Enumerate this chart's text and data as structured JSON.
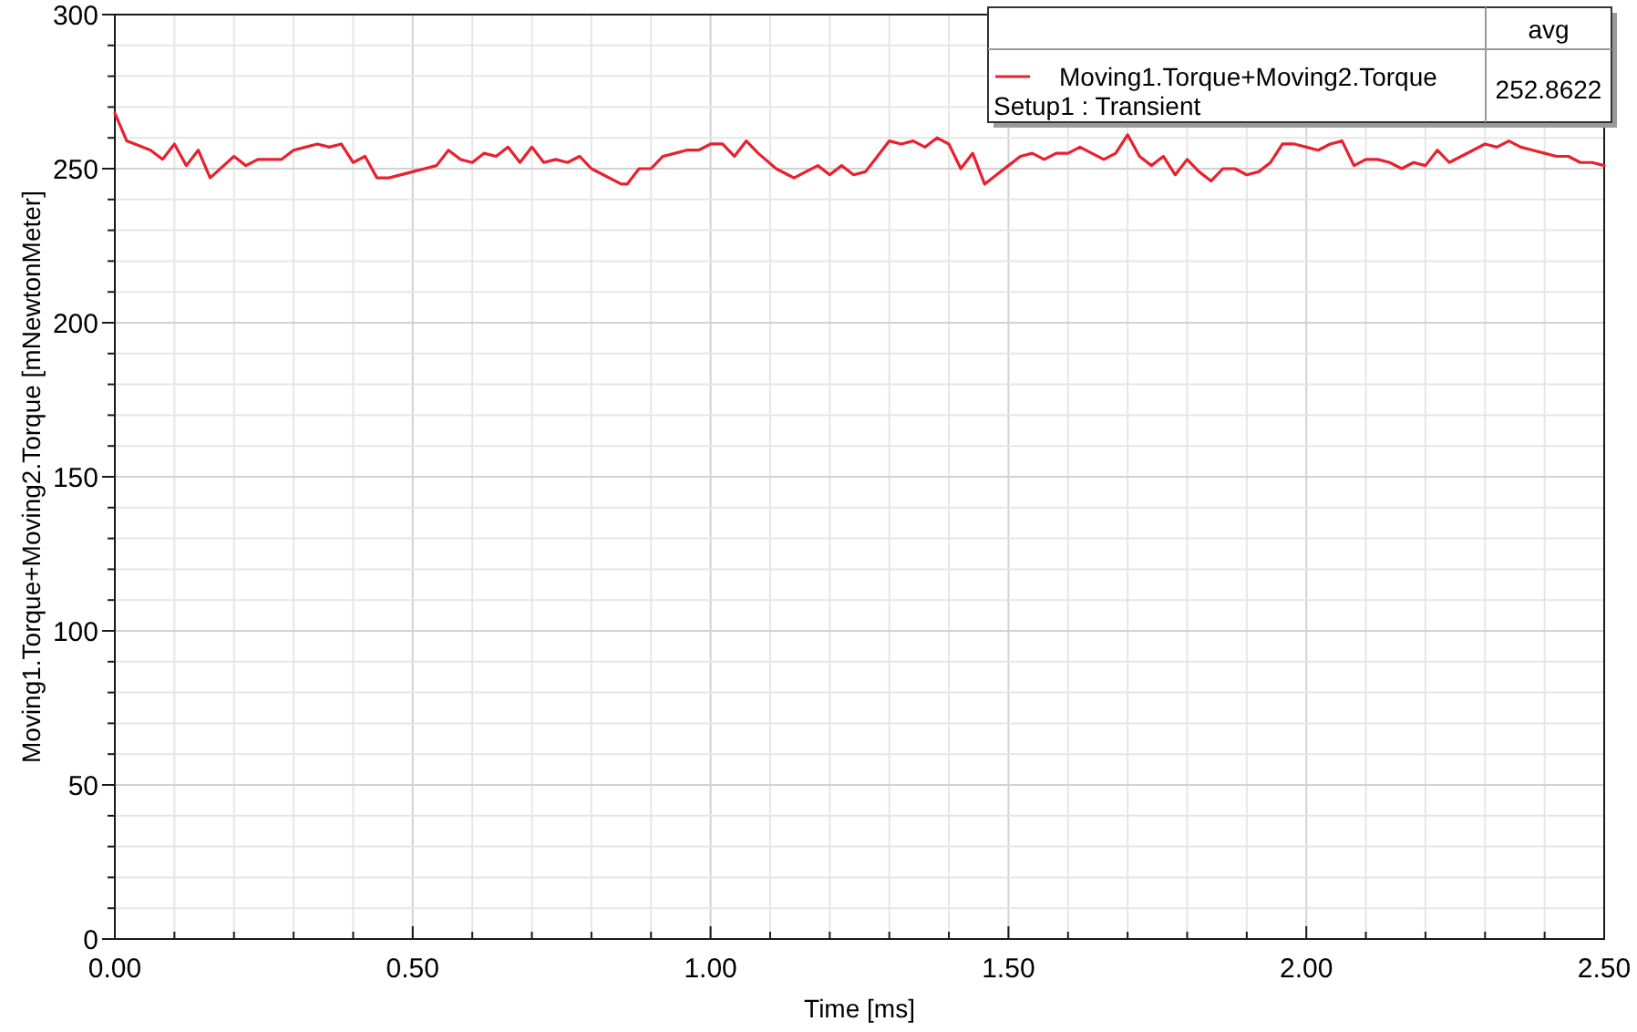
{
  "chart_data": {
    "type": "line",
    "xlabel": "Time [ms]",
    "ylabel": "Moving1.Torque+Moving2.Torque [mNewtonMeter]",
    "x": [
      0,
      0.02,
      0.06,
      0.08,
      0.1,
      0.12,
      0.14,
      0.16,
      0.2,
      0.22,
      0.24,
      0.28,
      0.3,
      0.32,
      0.34,
      0.36,
      0.38,
      0.4,
      0.42,
      0.44,
      0.46,
      0.5,
      0.52,
      0.54,
      0.56,
      0.58,
      0.6,
      0.62,
      0.64,
      0.66,
      0.68,
      0.7,
      0.72,
      0.74,
      0.76,
      0.78,
      0.8,
      0.82,
      0.85,
      0.86,
      0.88,
      0.9,
      0.92,
      0.94,
      0.96,
      0.98,
      1.0,
      1.02,
      1.04,
      1.06,
      1.08,
      1.11,
      1.13,
      1.14,
      1.16,
      1.18,
      1.2,
      1.22,
      1.24,
      1.26,
      1.28,
      1.3,
      1.32,
      1.34,
      1.36,
      1.38,
      1.4,
      1.42,
      1.44,
      1.46,
      1.48,
      1.5,
      1.52,
      1.54,
      1.56,
      1.58,
      1.6,
      1.62,
      1.64,
      1.66,
      1.68,
      1.7,
      1.72,
      1.74,
      1.76,
      1.78,
      1.8,
      1.82,
      1.84,
      1.86,
      1.88,
      1.9,
      1.92,
      1.94,
      1.96,
      1.98,
      2.0,
      2.02,
      2.04,
      2.06,
      2.08,
      2.1,
      2.12,
      2.14,
      2.16,
      2.18,
      2.2,
      2.22,
      2.24,
      2.26,
      2.28,
      2.3,
      2.32,
      2.34,
      2.36,
      2.38,
      2.4,
      2.42,
      2.44,
      2.46,
      2.48,
      2.5
    ],
    "series": [
      {
        "name": "Moving1.Torque+Moving2.Torque",
        "color": "#e8212e",
        "values": [
          268,
          259,
          256,
          253,
          258,
          251,
          256,
          247,
          254,
          251,
          253,
          253,
          256,
          257,
          258,
          257,
          258,
          252,
          254,
          247,
          247,
          249,
          250,
          251,
          256,
          253,
          252,
          255,
          254,
          257,
          252,
          257,
          252,
          253,
          252,
          254,
          250,
          248,
          245,
          245,
          250,
          250,
          254,
          255,
          256,
          256,
          258,
          258,
          254,
          259,
          255,
          250,
          248,
          247,
          249,
          251,
          248,
          251,
          248,
          249,
          254,
          259,
          258,
          259,
          257,
          260,
          258,
          250,
          255,
          245,
          248,
          251,
          254,
          255,
          253,
          255,
          255,
          257,
          255,
          253,
          255,
          261,
          254,
          251,
          254,
          248,
          253,
          249,
          246,
          250,
          250,
          248,
          249,
          252,
          258,
          258,
          257,
          256,
          258,
          259,
          251,
          253,
          253,
          252,
          250,
          252,
          251,
          256,
          252,
          254,
          256,
          258,
          257,
          259,
          257,
          256,
          255,
          254,
          254,
          252,
          252,
          251
        ]
      }
    ],
    "xlim": [
      0,
      2.5
    ],
    "ylim": [
      0,
      300
    ],
    "xticks": [
      {
        "value": 0,
        "label": "0.00"
      },
      {
        "value": 0.1,
        "label": null
      },
      {
        "value": 0.2,
        "label": null
      },
      {
        "value": 0.3,
        "label": null
      },
      {
        "value": 0.4,
        "label": null
      },
      {
        "value": 0.5,
        "label": "0.50"
      },
      {
        "value": 0.6,
        "label": null
      },
      {
        "value": 0.7,
        "label": null
      },
      {
        "value": 0.8,
        "label": null
      },
      {
        "value": 0.9,
        "label": null
      },
      {
        "value": 1,
        "label": "1.00"
      },
      {
        "value": 1.1,
        "label": null
      },
      {
        "value": 1.2,
        "label": null
      },
      {
        "value": 1.3,
        "label": null
      },
      {
        "value": 1.4,
        "label": null
      },
      {
        "value": 1.5,
        "label": "1.50"
      },
      {
        "value": 1.6,
        "label": null
      },
      {
        "value": 1.7,
        "label": null
      },
      {
        "value": 1.8,
        "label": null
      },
      {
        "value": 1.9,
        "label": null
      },
      {
        "value": 2,
        "label": "2.00"
      },
      {
        "value": 2.1,
        "label": null
      },
      {
        "value": 2.2,
        "label": null
      },
      {
        "value": 2.3,
        "label": null
      },
      {
        "value": 2.4,
        "label": null
      },
      {
        "value": 2.5,
        "label": "2.50"
      }
    ],
    "yticks": [
      0,
      {
        "value": 10,
        "label": null
      },
      {
        "value": 20,
        "label": null
      },
      {
        "value": 30,
        "label": null
      },
      {
        "value": 40,
        "label": null
      },
      50,
      {
        "value": 60,
        "label": null
      },
      {
        "value": 70,
        "label": null
      },
      {
        "value": 80,
        "label": null
      },
      {
        "value": 90,
        "label": null
      },
      100,
      {
        "value": 110,
        "label": null
      },
      {
        "value": 120,
        "label": null
      },
      {
        "value": 130,
        "label": null
      },
      {
        "value": 140,
        "label": null
      },
      150,
      {
        "value": 160,
        "label": null
      },
      {
        "value": 170,
        "label": null
      },
      {
        "value": 180,
        "label": null
      },
      {
        "value": 190,
        "label": null
      },
      200,
      {
        "value": 210,
        "label": null
      },
      {
        "value": 220,
        "label": null
      },
      {
        "value": 230,
        "label": null
      },
      {
        "value": 240,
        "label": null
      },
      250,
      {
        "value": 260,
        "label": null
      },
      {
        "value": 270,
        "label": null
      },
      {
        "value": 280,
        "label": null
      },
      {
        "value": 290,
        "label": null
      },
      300
    ],
    "grid": true,
    "legend": "top right",
    "annotations": [
      "Setup1 : Transient",
      "avg",
      "252.8622"
    ]
  }
}
